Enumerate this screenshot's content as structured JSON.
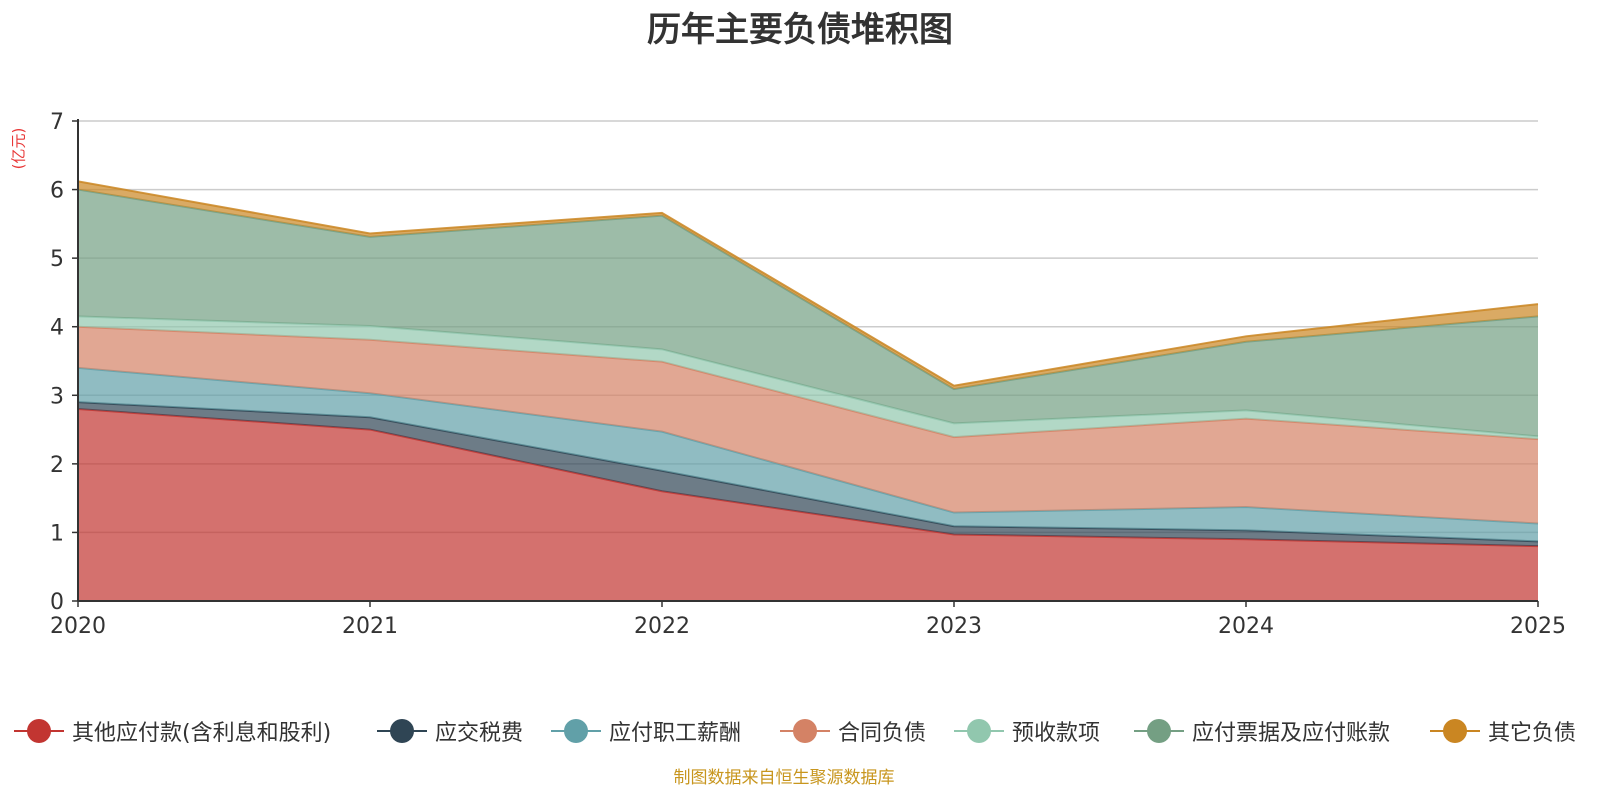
{
  "chart_data": {
    "type": "area",
    "stacked": true,
    "title": "历年主要负债堆积图",
    "ylabel": "(亿元)",
    "xlabel": "",
    "categories": [
      "2020",
      "2021",
      "2022",
      "2023",
      "2024",
      "2025"
    ],
    "ylim": [
      0,
      7
    ],
    "yticks": [
      0,
      1,
      2,
      3,
      4,
      5,
      6,
      7
    ],
    "grid": true,
    "legend_position": "bottom",
    "series": [
      {
        "name": "其他应付款(含利息和股利)",
        "color": "#c23531",
        "values": [
          2.8,
          2.5,
          1.6,
          0.97,
          0.9,
          0.8
        ]
      },
      {
        "name": "应交税费",
        "color": "#2f4554",
        "values": [
          0.1,
          0.18,
          0.3,
          0.12,
          0.13,
          0.07
        ]
      },
      {
        "name": "应付职工薪酬",
        "color": "#61a0a8",
        "values": [
          0.5,
          0.35,
          0.57,
          0.2,
          0.34,
          0.26
        ]
      },
      {
        "name": "合同负债",
        "color": "#d48265",
        "values": [
          0.6,
          0.78,
          1.02,
          1.1,
          1.29,
          1.23
        ]
      },
      {
        "name": "预收款项",
        "color": "#91c7ae",
        "values": [
          0.15,
          0.2,
          0.18,
          0.2,
          0.12,
          0.04
        ]
      },
      {
        "name": "应付票据及应付账款",
        "color": "#749f83",
        "values": [
          1.85,
          1.3,
          1.95,
          0.5,
          1.0,
          1.75
        ]
      },
      {
        "name": "其它负债",
        "color": "#ca8622",
        "values": [
          0.12,
          0.05,
          0.04,
          0.05,
          0.08,
          0.18
        ]
      }
    ]
  },
  "source_note": "制图数据来自恒生聚源数据库"
}
